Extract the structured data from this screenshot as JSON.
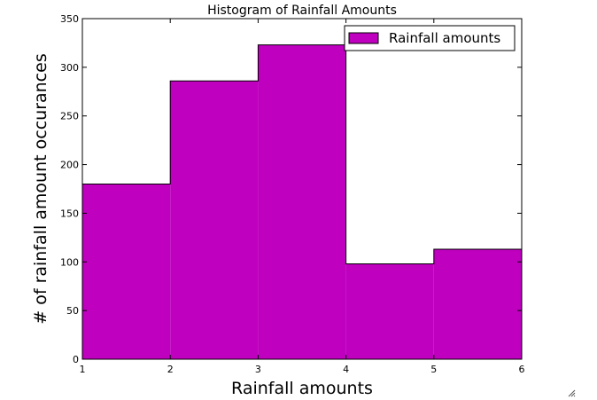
{
  "chart_data": {
    "type": "bar",
    "title": "Histogram of Rainfall Amounts",
    "xlabel": "Rainfall amounts",
    "ylabel": "# of rainfall amount occurances",
    "bins": [
      [
        1,
        2
      ],
      [
        2,
        3
      ],
      [
        3,
        4
      ],
      [
        4,
        5
      ],
      [
        5,
        6
      ]
    ],
    "series": [
      {
        "name": "Rainfall amounts",
        "values": [
          180,
          286,
          323,
          98,
          113
        ],
        "color": "#bf00bf"
      }
    ],
    "xlim": [
      1,
      6
    ],
    "ylim": [
      0,
      350
    ],
    "xticks": [
      1,
      2,
      3,
      4,
      5,
      6
    ],
    "yticks": [
      0,
      50,
      100,
      150,
      200,
      250,
      300,
      350
    ],
    "grid": false,
    "legend_position": "top-right"
  }
}
